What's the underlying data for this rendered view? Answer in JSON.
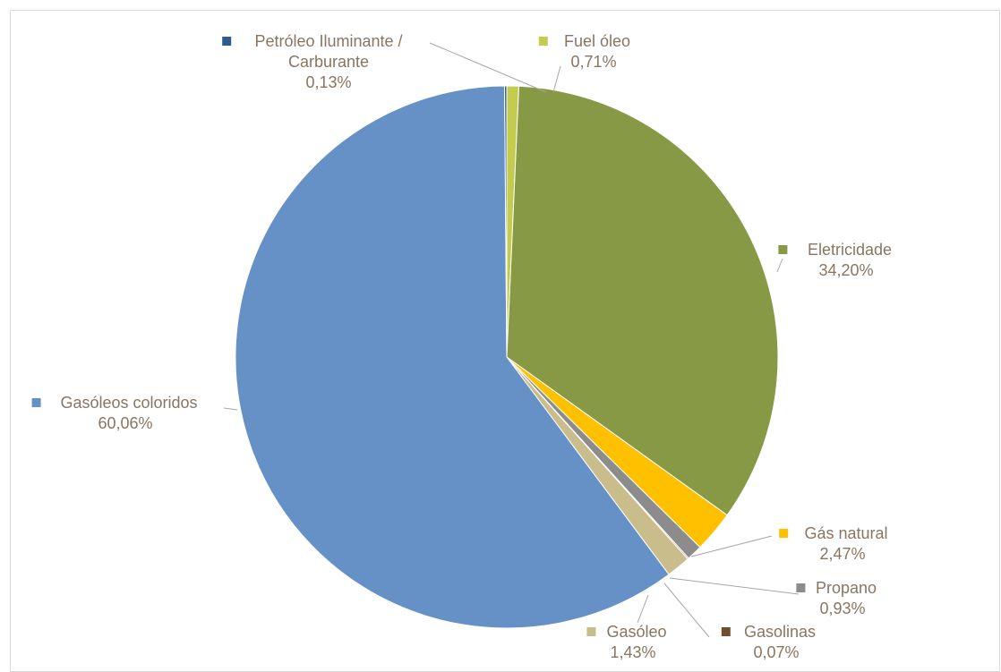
{
  "chart_data": {
    "type": "pie",
    "title": "",
    "slices": [
      {
        "name": "Fuel óleo",
        "value_label": "0,71%",
        "value": 0.71,
        "color": "#c3cc4e"
      },
      {
        "name": "Eletricidade",
        "value_label": "34,20%",
        "value": 34.2,
        "color": "#879945"
      },
      {
        "name": "Gás natural",
        "value_label": "2,47%",
        "value": 2.47,
        "color": "#ffc000"
      },
      {
        "name": "Propano",
        "value_label": "0,93%",
        "value": 0.93,
        "color": "#8c8c8c"
      },
      {
        "name": "Gasolinas",
        "value_label": "0,07%",
        "value": 0.07,
        "color": "#6d4f2e"
      },
      {
        "name": "Gasóleo",
        "value_label": "1,43%",
        "value": 1.43,
        "color": "#c9bd8c"
      },
      {
        "name": "Gasóleos coloridos",
        "value_label": "60,06%",
        "value": 60.06,
        "color": "#6591c7"
      },
      {
        "name": "Petróleo Iluminante / Carburante",
        "value_label": "0,13%",
        "value": 0.13,
        "color": "#2f5b8f"
      }
    ],
    "legend": "none",
    "labels_position": "outside-with-leader-lines"
  }
}
